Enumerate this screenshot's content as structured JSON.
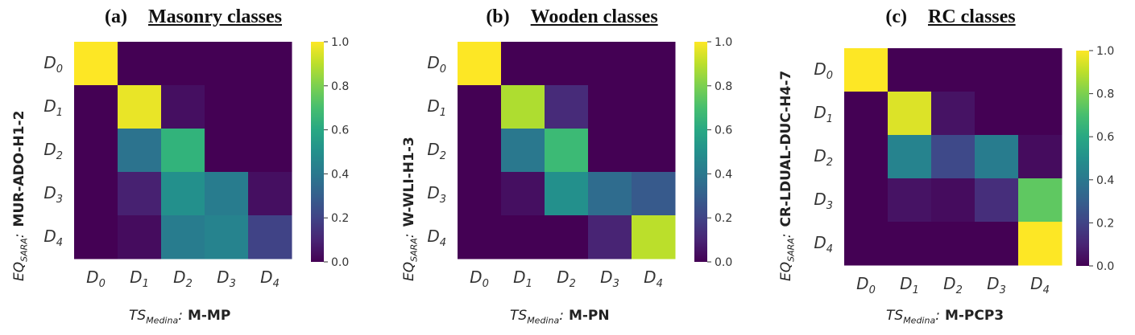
{
  "chart_data": [
    {
      "type": "heatmap",
      "panel_label": "(a)",
      "title": "Masonry classes",
      "ylabel_prefix": "EQ",
      "ylabel_sub": "SARA",
      "ylabel_value": "MUR-ADO-H1-2",
      "xlabel_prefix": "TS",
      "xlabel_sub": "Medina",
      "xlabel_value": "M-MP",
      "rows": [
        "D0",
        "D1",
        "D2",
        "D3",
        "D4"
      ],
      "cols": [
        "D0",
        "D1",
        "D2",
        "D3",
        "D4"
      ],
      "values": [
        [
          1.0,
          0.0,
          0.0,
          0.0,
          0.0
        ],
        [
          0.0,
          0.97,
          0.04,
          0.0,
          0.0
        ],
        [
          0.0,
          0.38,
          0.65,
          0.0,
          0.0
        ],
        [
          0.0,
          0.09,
          0.5,
          0.42,
          0.04
        ],
        [
          0.0,
          0.03,
          0.42,
          0.45,
          0.2
        ]
      ],
      "colorbar": {
        "min": 0.0,
        "max": 1.0,
        "ticks": [
          "0.0",
          "0.2",
          "0.4",
          "0.6",
          "0.8",
          "1.0"
        ]
      }
    },
    {
      "type": "heatmap",
      "panel_label": "(b)",
      "title": "Wooden classes",
      "ylabel_prefix": "EQ",
      "ylabel_sub": "SARA",
      "ylabel_value": "W-WLI-H1-3",
      "xlabel_prefix": "TS",
      "xlabel_sub": "Medina",
      "xlabel_value": "M-PN",
      "rows": [
        "D0",
        "D1",
        "D2",
        "D3",
        "D4"
      ],
      "cols": [
        "D0",
        "D1",
        "D2",
        "D3",
        "D4"
      ],
      "values": [
        [
          1.0,
          0.0,
          0.0,
          0.0,
          0.0
        ],
        [
          0.0,
          0.88,
          0.12,
          0.0,
          0.0
        ],
        [
          0.0,
          0.4,
          0.68,
          0.0,
          0.0
        ],
        [
          0.0,
          0.04,
          0.5,
          0.35,
          0.28
        ],
        [
          0.0,
          0.0,
          0.0,
          0.1,
          0.9
        ]
      ],
      "colorbar": {
        "min": 0.0,
        "max": 1.0,
        "ticks": [
          "0.0",
          "0.2",
          "0.4",
          "0.6",
          "0.8",
          "1.0"
        ]
      }
    },
    {
      "type": "heatmap",
      "panel_label": "(c)",
      "title": "RC classes",
      "ylabel_prefix": "EQ",
      "ylabel_sub": "SARA",
      "ylabel_value": "CR-LDUAL-DUC-H4-7",
      "xlabel_prefix": "TS",
      "xlabel_sub": "Medina",
      "xlabel_value": "M-PCP3",
      "rows": [
        "D0",
        "D1",
        "D2",
        "D3",
        "D4"
      ],
      "cols": [
        "D0",
        "D1",
        "D2",
        "D3",
        "D4"
      ],
      "values": [
        [
          1.0,
          0.0,
          0.0,
          0.0,
          0.0
        ],
        [
          0.0,
          0.95,
          0.05,
          0.0,
          0.0
        ],
        [
          0.0,
          0.45,
          0.22,
          0.42,
          0.03
        ],
        [
          0.0,
          0.05,
          0.03,
          0.13,
          0.75
        ],
        [
          0.0,
          0.0,
          0.0,
          0.0,
          1.0
        ]
      ],
      "colorbar": {
        "min": 0.0,
        "max": 1.0,
        "ticks": [
          "0.0",
          "0.2",
          "0.4",
          "0.6",
          "0.8",
          "1.0"
        ]
      }
    }
  ]
}
